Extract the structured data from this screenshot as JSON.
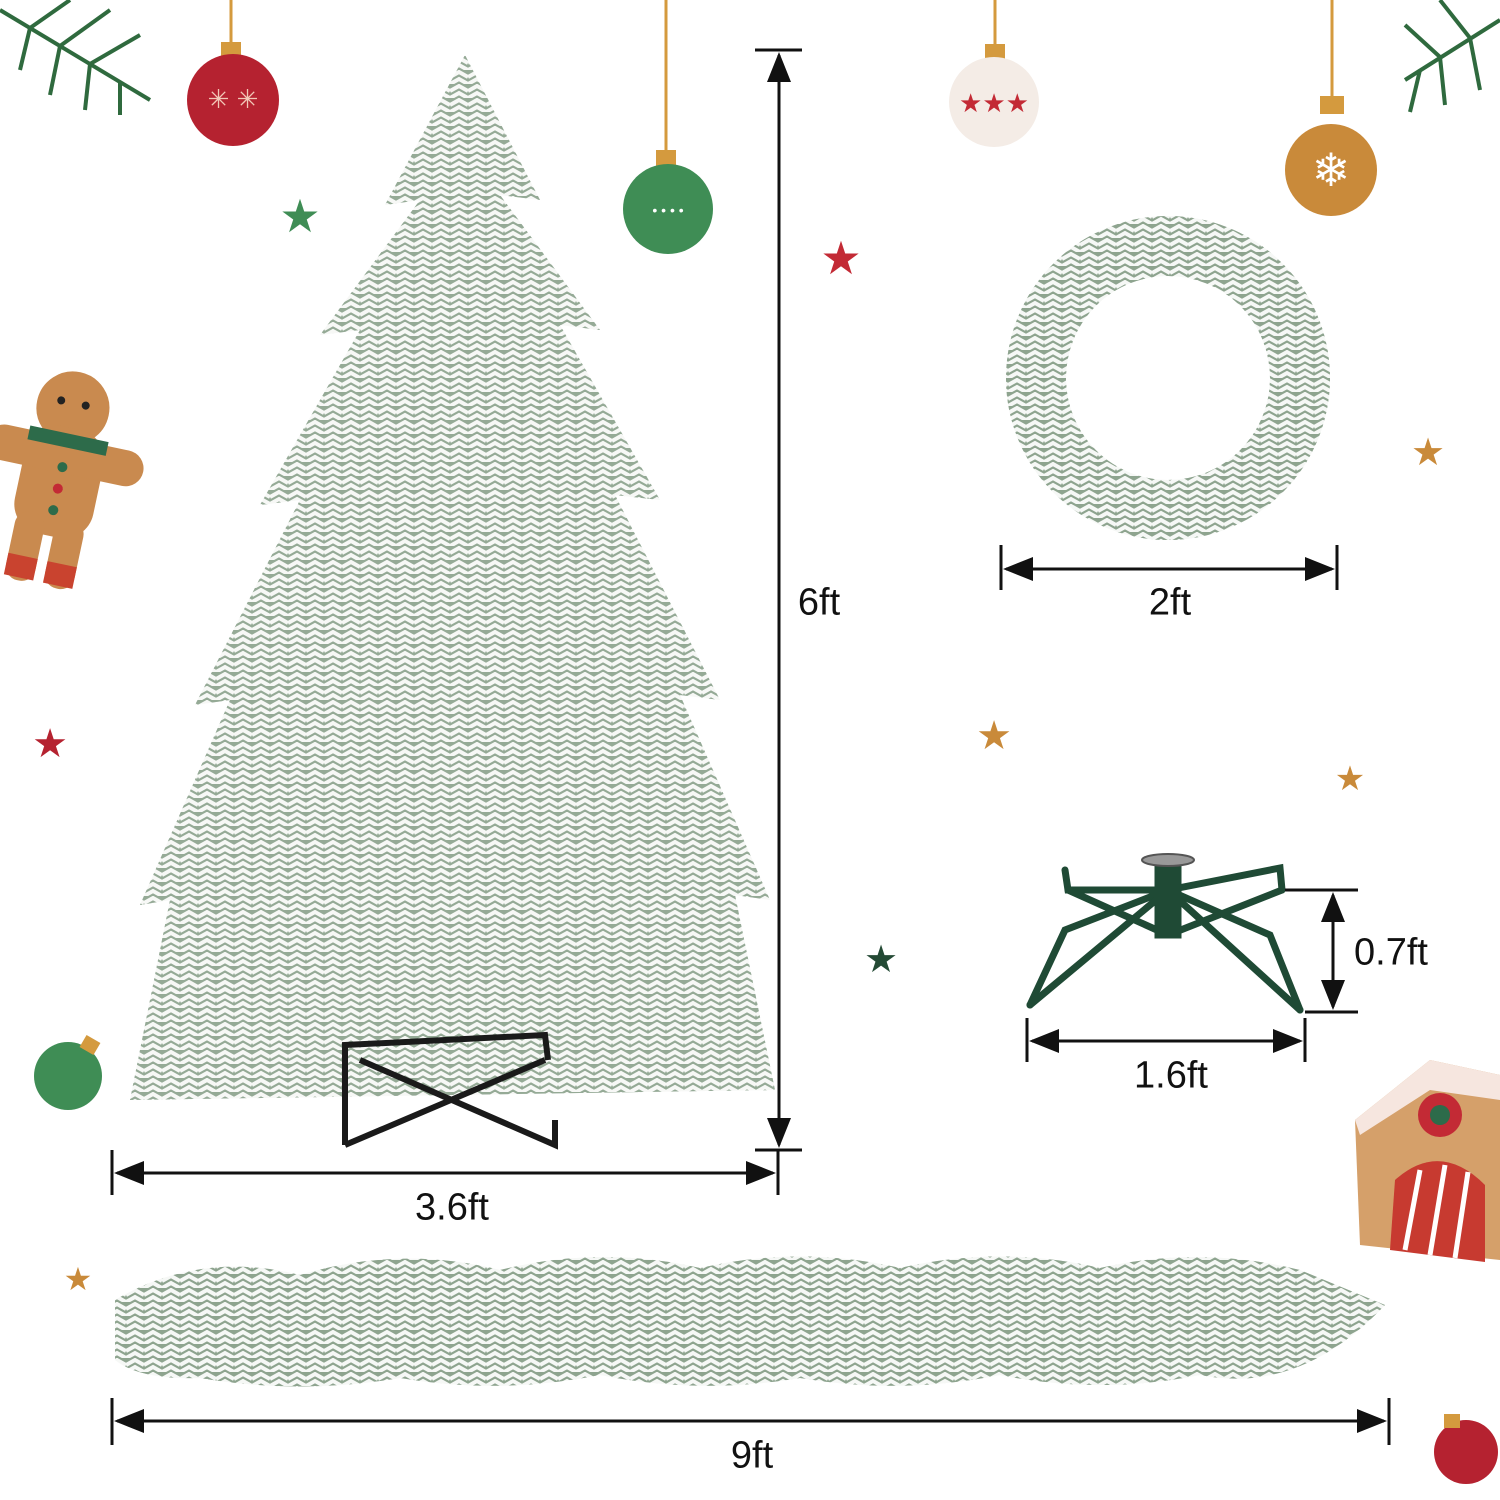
{
  "products": {
    "tree": {
      "height_label": "6ft",
      "width_label": "3.6ft"
    },
    "wreath": {
      "diameter_label": "2ft"
    },
    "stand": {
      "height_label": "0.7ft",
      "width_label": "1.6ft"
    },
    "garland": {
      "length_label": "9ft"
    }
  },
  "colors": {
    "foliage_green": "#3f6b45",
    "snow": "#f1f3f0",
    "stand_green": "#1f4a35",
    "ornament_red": "#b52230",
    "ornament_green": "#3f8d55",
    "ornament_gold": "#c98a3a",
    "dimension_line": "#111111"
  }
}
